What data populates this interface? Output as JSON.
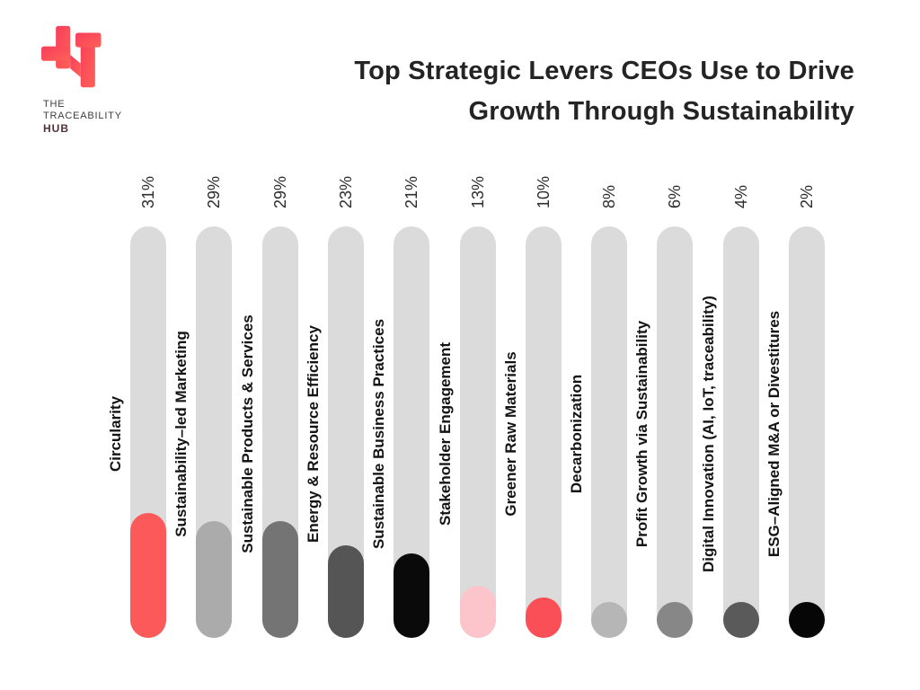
{
  "logo": {
    "line1": "THE",
    "line2": "TRACEABILITY",
    "line3": "HUB",
    "brand_red_start": "#F73E5C",
    "brand_red_end": "#FF6156"
  },
  "title": {
    "line1": "Top Strategic Levers CEOs Use to Drive",
    "line2": "Growth Through Sustainability"
  },
  "chart_data": {
    "type": "bar",
    "orientation": "vertical",
    "title": "Top Strategic Levers CEOs Use to Drive Growth Through Sustainability",
    "unit": "%",
    "ylim": [
      0,
      31
    ],
    "grid": false,
    "legend": false,
    "categories": [
      "Circularity",
      "Sustainability–led Marketing",
      "Sustainable Products & Services",
      "Energy & Resource Efficiency",
      "Sustainable Business Practices",
      "Stakeholder Engagement",
      "Greener Raw Materials",
      "Decarbonization",
      "Profit Growth via Sustainability",
      "Digital Innovation (AI, IoT, traceability)",
      "ESG–Aligned M&A or Divestitures"
    ],
    "values": [
      31,
      29,
      29,
      23,
      21,
      13,
      10,
      8,
      6,
      4,
      2
    ],
    "value_labels": [
      "31%",
      "29%",
      "29%",
      "23%",
      "21%",
      "13%",
      "10%",
      "8%",
      "6%",
      "4%",
      "2%"
    ],
    "bar_colors": [
      "#FC5A5A",
      "#ABABAB",
      "#747474",
      "#555555",
      "#0A0A0A",
      "#FBC5CB",
      "#FB4F57",
      "#B6B6B6",
      "#878787",
      "#5A5A5A",
      "#060606"
    ],
    "track_color": "#DBDBDB"
  }
}
